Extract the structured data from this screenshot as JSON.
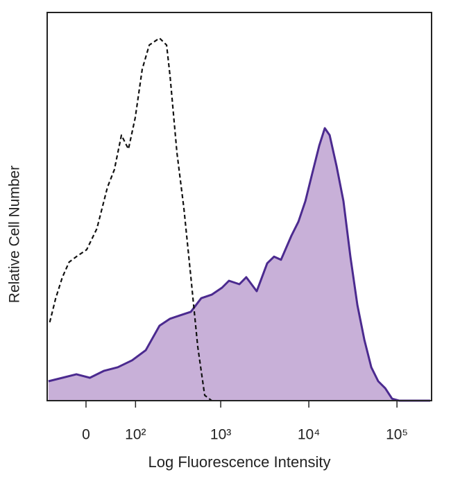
{
  "chart_data": {
    "type": "histogram-overlay",
    "xlabel": "Log Fluorescence Intensity",
    "ylabel": "Relative Cell Number",
    "xscale": "biexponential",
    "xlim": [
      -71,
      247000
    ],
    "ylim": [
      0,
      100
    ],
    "xticks": [
      0,
      {
        "value": 100,
        "label": "10²"
      },
      {
        "value": 1000,
        "label": "10³"
      },
      {
        "value": 10000,
        "label": "10⁴"
      },
      {
        "value": 100000,
        "label": "10⁵"
      }
    ],
    "series": [
      {
        "color": "#4b2a8f",
        "fill": "#c8b0d8",
        "dashed": false,
        "x": [
          -68,
          -39,
          -15,
          6,
          29,
          55,
          90,
          135,
          198,
          263,
          346,
          457,
          600,
          789,
          1035,
          1241,
          1630,
          1951,
          2562,
          3368,
          4033,
          4838,
          6345,
          7626,
          9132,
          10947,
          13129,
          15181,
          17221,
          20636,
          24728,
          29650,
          35580,
          42637,
          51117,
          61316,
          73532,
          88120,
          105673,
          238386
        ],
        "values": [
          5.0,
          5.9,
          6.8,
          5.9,
          7.7,
          8.6,
          10.4,
          13.0,
          19.3,
          21.1,
          22.0,
          22.9,
          26.4,
          27.3,
          29.1,
          30.9,
          30.0,
          31.8,
          28.2,
          35.4,
          37.1,
          36.3,
          42.5,
          46.1,
          51.4,
          58.6,
          65.7,
          70.2,
          68.4,
          60.4,
          51.4,
          37.1,
          24.6,
          15.7,
          8.6,
          5.0,
          3.2,
          0.5,
          0,
          0
        ]
      },
      {
        "color": "#111111",
        "fill": null,
        "dashed": true,
        "x": [
          -65,
          -52,
          -39,
          -27,
          -15,
          1,
          17,
          35,
          48,
          63,
          80,
          99,
          122,
          149,
          198,
          240,
          263,
          316,
          380,
          457,
          548,
          657,
          789
        ],
        "values": [
          20.2,
          26.4,
          31.8,
          35.7,
          37.1,
          38.9,
          44.3,
          55.0,
          59.5,
          68.4,
          64.8,
          72.9,
          85.4,
          91.6,
          93.4,
          91.6,
          83.6,
          63.9,
          49.6,
          31.8,
          13.9,
          1.4,
          0
        ]
      }
    ]
  }
}
